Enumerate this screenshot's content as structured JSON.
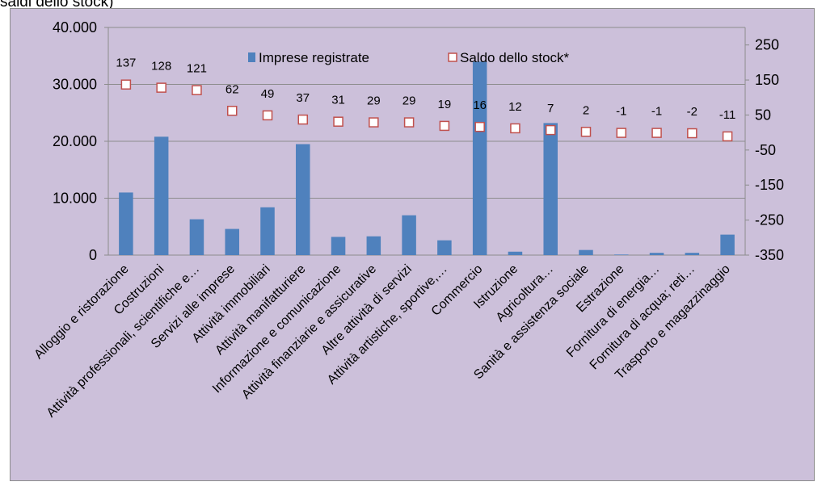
{
  "caption": "saldi dello stock)",
  "chart_data": {
    "type": "bar",
    "categories": [
      "Alloggio e ristorazione",
      "Costruzioni",
      "Attività professionali, scientifiche e…",
      "Servizi alle imprese",
      "Attività immobiliari",
      "Attività manifatturiere",
      "Informazione e comunicazione",
      "Attività finanziarie e assicurative",
      "Altre attività di servizi",
      "Attività artistiche, sportive,…",
      "Commercio",
      "Istruzione",
      "Agricoltura…",
      "Sanità e assistenza sociale",
      "Estrazione",
      "Fornitura di energia…",
      "Fornitura di acqua; reti…",
      "Trasporto e magazzinaggio"
    ],
    "series": [
      {
        "name": "Imprese registrate",
        "type": "bar",
        "axis": "left",
        "color": "#4f81bd",
        "values": [
          11000,
          20800,
          6300,
          4600,
          8400,
          19500,
          3200,
          3300,
          7000,
          2600,
          34000,
          600,
          23200,
          900,
          100,
          400,
          400,
          3600
        ]
      },
      {
        "name": "Saldo dello stock*",
        "type": "scatter",
        "axis": "right",
        "marker_fill": "#ffffff",
        "marker_stroke": "#c0504d",
        "values": [
          137,
          128,
          121,
          62,
          49,
          37,
          31,
          29,
          29,
          19,
          16,
          12,
          7,
          2,
          -1,
          -1,
          -2,
          -11
        ],
        "labels": [
          "137",
          "128",
          "121",
          "62",
          "49",
          "37",
          "31",
          "29",
          "29",
          "19",
          "16",
          "12",
          "7",
          "2",
          "-1",
          "-1",
          "-2",
          "-11"
        ]
      }
    ],
    "y_left": {
      "ylim": [
        0,
        40000
      ],
      "ticks": [
        "0",
        "10.000",
        "20.000",
        "30.000",
        "40.000"
      ]
    },
    "y_right": {
      "ylim": [
        -350,
        300
      ],
      "ticks": [
        "-350",
        "-250",
        "-150",
        "-50",
        "50",
        "150",
        "250"
      ]
    },
    "grid": true,
    "legend": "top-center"
  }
}
